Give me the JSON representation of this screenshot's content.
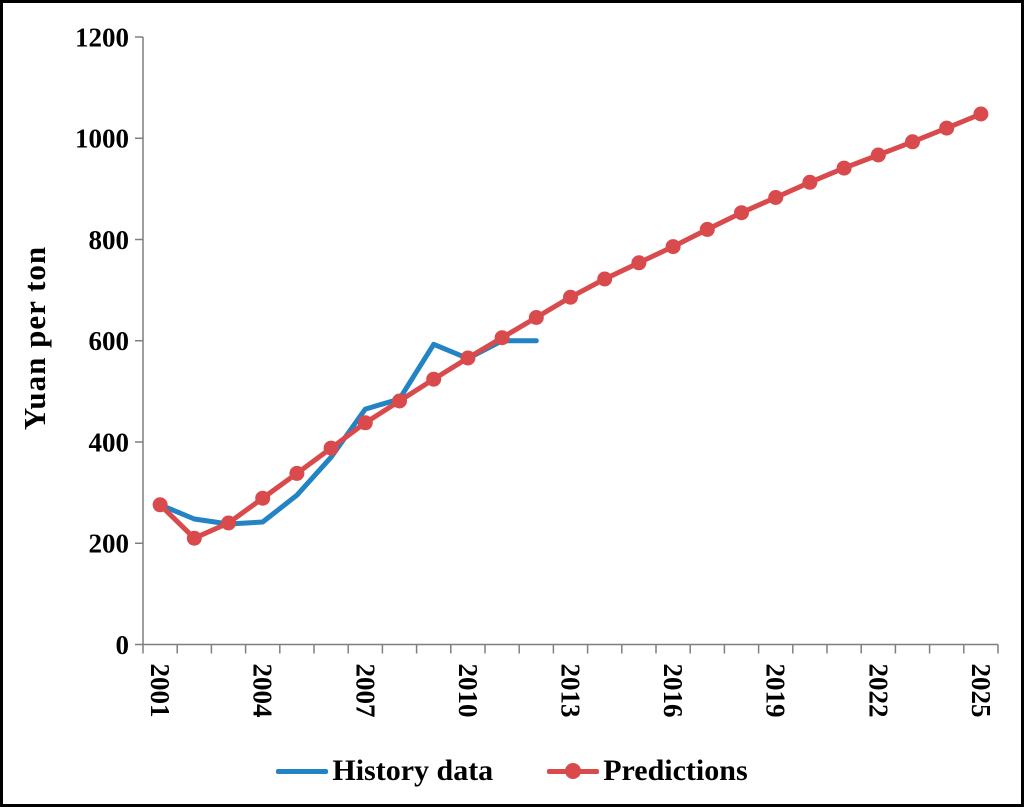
{
  "figure": {
    "background": "#ffffff",
    "border_color": "#000000"
  },
  "chart_data": {
    "type": "line",
    "title": "",
    "xlabel": "",
    "ylabel": "Yuan per ton",
    "categories": [
      2001,
      2002,
      2003,
      2004,
      2005,
      2006,
      2007,
      2008,
      2009,
      2010,
      2011,
      2012,
      2013,
      2014,
      2015,
      2016,
      2017,
      2018,
      2019,
      2020,
      2021,
      2022,
      2023,
      2024,
      2025
    ],
    "x_tick_label_years": [
      2001,
      2004,
      2007,
      2010,
      2013,
      2016,
      2019,
      2022,
      2025
    ],
    "ylim": [
      0,
      1200
    ],
    "y_ticks": [
      0,
      200,
      400,
      600,
      800,
      1000,
      1200
    ],
    "grid": false,
    "legend_position": "bottom",
    "axis_color": "#7f7f7f",
    "tick_label_color": "#000000",
    "series": [
      {
        "name": "History data",
        "color": "#2383c4",
        "marker": "none",
        "marker_size": 0,
        "line_width": 5,
        "start_year": 2001,
        "values": [
          276,
          248,
          238,
          242,
          295,
          370,
          465,
          485,
          593,
          565,
          600,
          600
        ]
      },
      {
        "name": "Predictions",
        "color": "#d94a4d",
        "marker": "circle",
        "marker_size": 7.5,
        "line_width": 5,
        "start_year": 2001,
        "values": [
          276,
          210,
          240,
          289,
          338,
          388,
          438,
          481,
          524,
          566,
          606,
          646,
          686,
          722,
          754,
          786,
          820,
          853,
          883,
          913,
          941,
          967,
          993,
          1020,
          1048
        ]
      }
    ]
  }
}
